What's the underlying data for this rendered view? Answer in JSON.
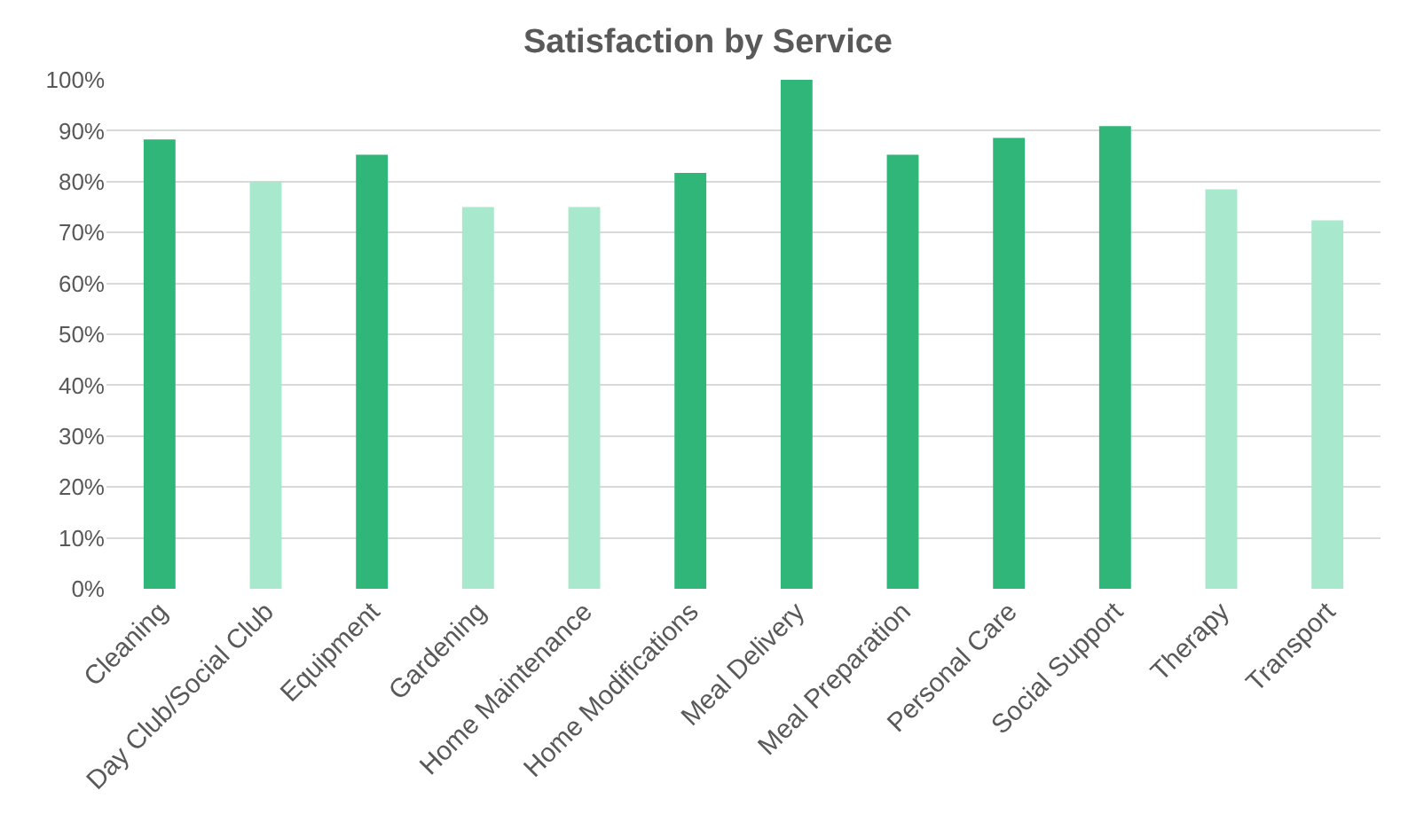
{
  "chart_data": {
    "type": "bar",
    "title": "Satisfaction by Service",
    "categories": [
      "Cleaning",
      "Day Club/Social Club",
      "Equipment",
      "Gardening",
      "Home Maintenance",
      "Home Modifications",
      "Meal Delivery",
      "Meal Preparation",
      "Personal Care",
      "Social Support",
      "Therapy",
      "Transport"
    ],
    "values": [
      88.3,
      80,
      85.3,
      75,
      75,
      81.7,
      100,
      85.3,
      88.6,
      90.9,
      78.5,
      72.4
    ],
    "colors": [
      "#31b67a",
      "#a8e8cc",
      "#31b67a",
      "#a8e8cc",
      "#a8e8cc",
      "#31b67a",
      "#31b67a",
      "#31b67a",
      "#31b67a",
      "#31b67a",
      "#a8e8cc",
      "#a8e8cc"
    ],
    "ylim": [
      0,
      100
    ],
    "yticks": [
      {
        "value": 0,
        "label": "0%"
      },
      {
        "value": 10,
        "label": "10%"
      },
      {
        "value": 20,
        "label": "20%"
      },
      {
        "value": 30,
        "label": "30%"
      },
      {
        "value": 40,
        "label": "40%"
      },
      {
        "value": 50,
        "label": "50%"
      },
      {
        "value": 60,
        "label": "60%"
      },
      {
        "value": 70,
        "label": "70%"
      },
      {
        "value": 80,
        "label": "80%"
      },
      {
        "value": 90,
        "label": "90%"
      },
      {
        "value": 100,
        "label": "100%"
      }
    ],
    "grid": "y",
    "legend": false
  }
}
